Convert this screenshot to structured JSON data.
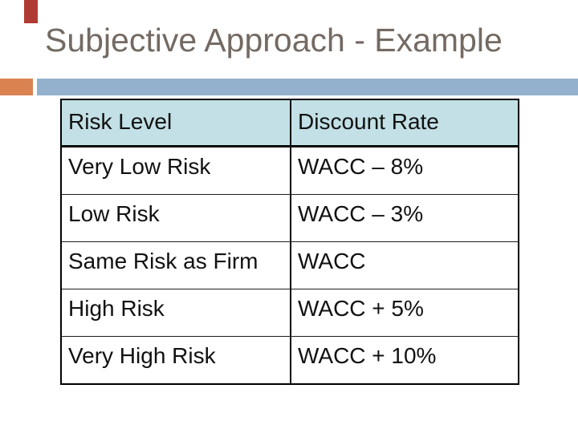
{
  "slide": {
    "title": "Subjective Approach - Example"
  },
  "accents": {
    "red_tab_color": "#B03A34",
    "orange_square_color": "#DB8251",
    "blue_bar_color": "#93B1CC",
    "title_color": "#746A62",
    "table_header_bg": "#C2E0E5"
  },
  "table": {
    "header": {
      "risk": "Risk Level",
      "rate": "Discount Rate"
    },
    "rows": [
      {
        "risk": "Very Low Risk",
        "rate": "WACC – 8%"
      },
      {
        "risk": "Low Risk",
        "rate": "WACC – 3%"
      },
      {
        "risk": "Same Risk as Firm",
        "rate": "WACC"
      },
      {
        "risk": "High Risk",
        "rate": "WACC + 5%"
      },
      {
        "risk": "Very High Risk",
        "rate": "WACC + 10%"
      }
    ]
  }
}
